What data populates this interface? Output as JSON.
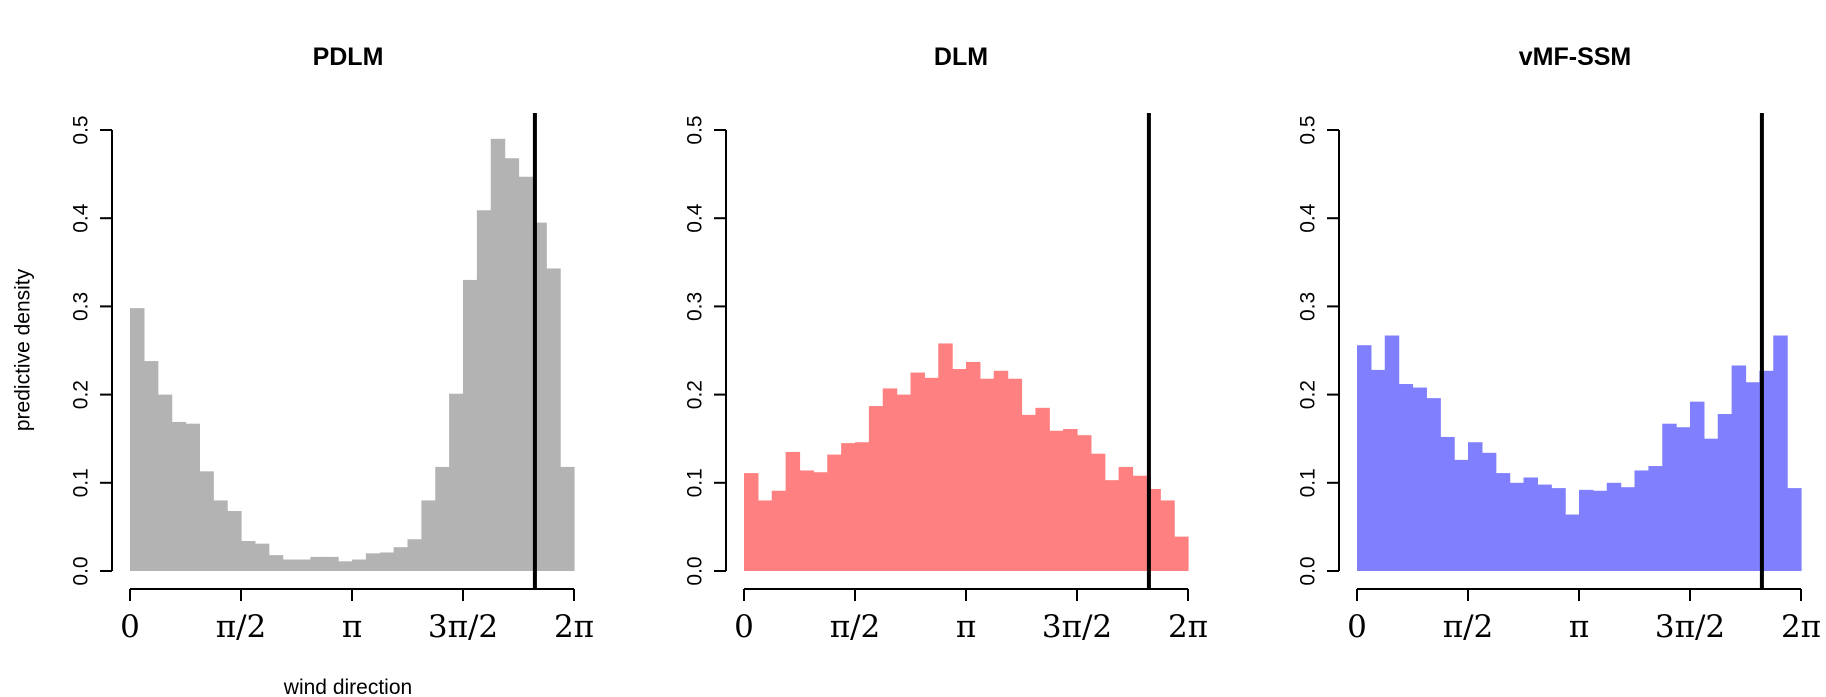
{
  "chart_data": [
    {
      "type": "bar",
      "title": "PDLM",
      "xlabel": "wind direction",
      "ylabel": "predictive density",
      "xlim": [
        0,
        6.2832
      ],
      "ylim": [
        0,
        0.5
      ],
      "yticks": [
        "0.0",
        "0.1",
        "0.2",
        "0.3",
        "0.4",
        "0.5"
      ],
      "xticks": [
        "0",
        "π/2",
        "π",
        "3π/2",
        "2π"
      ],
      "bins": 32,
      "values": [
        0.298,
        0.238,
        0.2,
        0.169,
        0.167,
        0.113,
        0.08,
        0.068,
        0.034,
        0.031,
        0.018,
        0.013,
        0.013,
        0.016,
        0.016,
        0.011,
        0.013,
        0.02,
        0.021,
        0.027,
        0.036,
        0.08,
        0.118,
        0.201,
        0.33,
        0.409,
        0.49,
        0.468,
        0.447,
        0.395,
        0.343,
        0.118
      ],
      "observed": 5.73,
      "color": "#b3b3b3"
    },
    {
      "type": "bar",
      "title": "DLM",
      "xlabel": "",
      "ylabel": "",
      "xlim": [
        0,
        6.2832
      ],
      "ylim": [
        0,
        0.5
      ],
      "yticks": [
        "0.0",
        "0.1",
        "0.2",
        "0.3",
        "0.4",
        "0.5"
      ],
      "xticks": [
        "0",
        "π/2",
        "π",
        "3π/2",
        "2π"
      ],
      "bins": 32,
      "values": [
        0.111,
        0.08,
        0.091,
        0.135,
        0.114,
        0.112,
        0.132,
        0.145,
        0.146,
        0.187,
        0.207,
        0.2,
        0.225,
        0.219,
        0.258,
        0.229,
        0.237,
        0.218,
        0.227,
        0.218,
        0.177,
        0.185,
        0.159,
        0.161,
        0.154,
        0.133,
        0.103,
        0.118,
        0.108,
        0.093,
        0.08,
        0.039
      ],
      "observed": 5.73,
      "color": "#ff8080"
    },
    {
      "type": "bar",
      "title": "vMF-SSM",
      "xlabel": "",
      "ylabel": "",
      "xlim": [
        0,
        6.2832
      ],
      "ylim": [
        0,
        0.5
      ],
      "yticks": [
        "0.0",
        "0.1",
        "0.2",
        "0.3",
        "0.4",
        "0.5"
      ],
      "xticks": [
        "0",
        "π/2",
        "π",
        "3π/2",
        "2π"
      ],
      "bins": 32,
      "values": [
        0.256,
        0.228,
        0.267,
        0.212,
        0.208,
        0.196,
        0.152,
        0.126,
        0.146,
        0.134,
        0.111,
        0.1,
        0.106,
        0.098,
        0.094,
        0.064,
        0.092,
        0.091,
        0.1,
        0.095,
        0.114,
        0.119,
        0.167,
        0.163,
        0.192,
        0.15,
        0.178,
        0.233,
        0.214,
        0.227,
        0.267,
        0.094
      ],
      "observed": 5.73,
      "color": "#8080ff"
    }
  ]
}
